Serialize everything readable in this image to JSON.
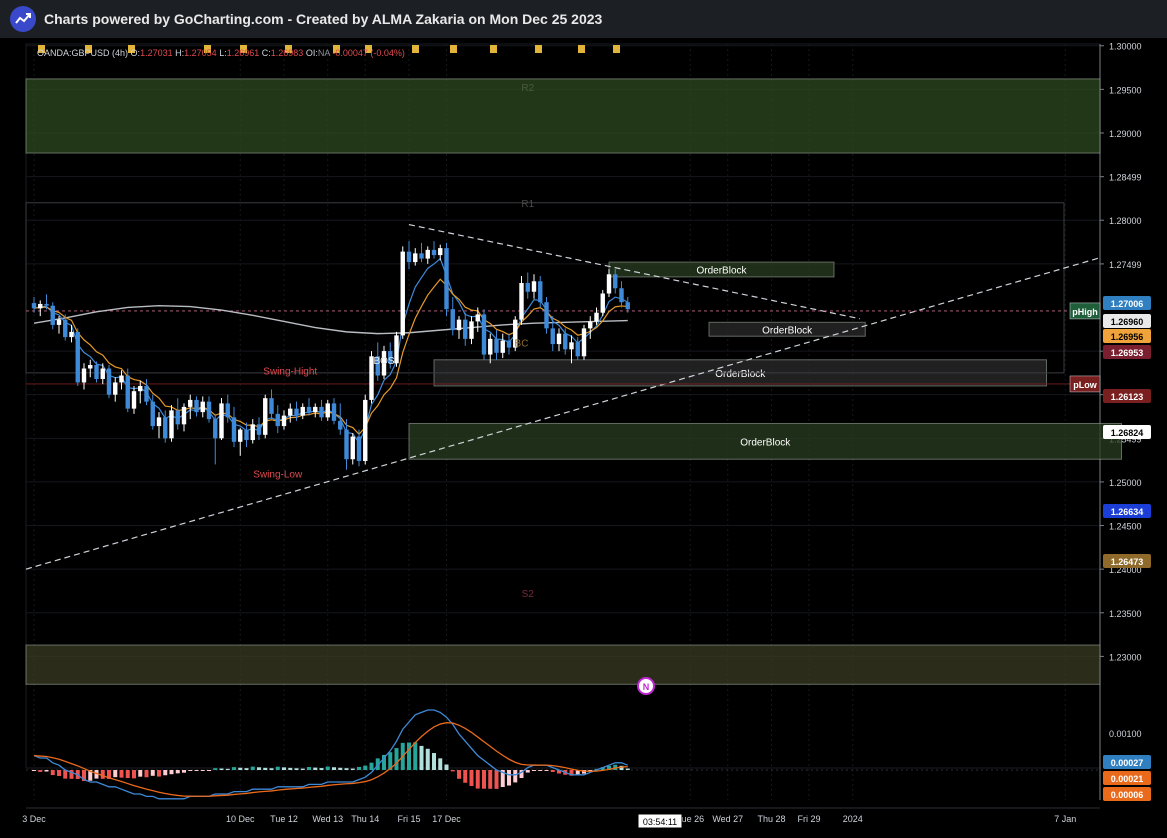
{
  "header": {
    "title": "Charts powered by GoCharting.com - Created by ALMA Zakaria on Mon Dec 25 2023",
    "logo_icon": "trend-line-icon"
  },
  "legend": {
    "symbol": "OANDA:GBPUSD (4h)",
    "open_label": "O:",
    "open_value": "1.27031",
    "high_label": "H:",
    "high_value": "1.27054",
    "low_label": "L:",
    "low_value": "1.26961",
    "close_label": "C:",
    "close_value": "1.26983",
    "oi_label": "OI:",
    "oi_value": "NA",
    "change_value": "-0.00047",
    "change_pct": "(-0.04%)"
  },
  "chart_data": {
    "type": "candlestick",
    "price_axis_labels": [
      "1.30000",
      "1.29500",
      "1.29000",
      "1.28499",
      "1.28000",
      "1.27499",
      "1.26499",
      "1.26000",
      "1.25499",
      "1.25000",
      "1.24500",
      "1.24000",
      "1.23500",
      "1.23000"
    ],
    "osc_axis_labels": [
      "0.00100"
    ],
    "time_axis_labels": [
      "3 Dec",
      "10 Dec",
      "Tue 12",
      "Wed 13",
      "Thu 14",
      "Fri 15",
      "17 Dec",
      "Tue 26",
      "Wed 27",
      "Thu 28",
      "Fri 29",
      "2024",
      "7 Jan"
    ],
    "countdown": "03:54:11",
    "price_badges": [
      {
        "value": "1.27006",
        "color": "#2f7fc1"
      },
      {
        "value": "1.26960",
        "color": "#e9e9e9"
      },
      {
        "value": "1.26956",
        "color": "#f0a33a"
      },
      {
        "value": "1.26953",
        "color": "#7a1f30"
      },
      {
        "value": "1.26123",
        "color": "#7a1f1f"
      },
      {
        "value": "1.26824",
        "color": "#ffffff"
      },
      {
        "value": "1.26634",
        "color": "#1b3fd6"
      },
      {
        "value": "1.26473",
        "color": "#8f6a2a"
      }
    ],
    "osc_badges": [
      {
        "value": "0.00027",
        "color": "#2f7fc1"
      },
      {
        "value": "0.00021",
        "color": "#ea6a1c"
      },
      {
        "value": "0.00006",
        "color": "#ea6a1c"
      }
    ],
    "level_tags": [
      {
        "text": "pHigh",
        "price": 1.2696,
        "color": "#1f5f3a"
      },
      {
        "text": "pLow",
        "price": 1.26123,
        "color": "#7a1f1f"
      }
    ],
    "zones": [
      {
        "label": "",
        "p_top": 1.2962,
        "p_bot": 1.2877,
        "i0": -1,
        "i1": 200,
        "fill": "#2e4a1f"
      },
      {
        "label": "",
        "p_top": 1.2313,
        "p_bot": 1.2268,
        "i0": -1,
        "i1": 200,
        "fill": "#3a3c23"
      },
      {
        "label": "OrderBlock",
        "p_top": 1.2752,
        "p_bot": 1.2735,
        "i0": 92,
        "i1": 128,
        "fill": "#2a3d20"
      },
      {
        "label": "OrderBlock",
        "p_top": 1.2683,
        "p_bot": 1.2667,
        "i0": 108,
        "i1": 133,
        "fill": "#2b2b2b"
      },
      {
        "label": "OrderBlock",
        "p_top": 1.264,
        "p_bot": 1.261,
        "i0": 64,
        "i1": 162,
        "fill": "#2b2b2b"
      },
      {
        "label": "OrderBlock",
        "p_top": 1.2567,
        "p_bot": 1.2526,
        "i0": 60,
        "i1": 174,
        "fill": "#2a3d20"
      }
    ],
    "annotations": [
      {
        "text": "Swing-Hight",
        "price": 1.2623,
        "i": 41,
        "color": "#e0494f"
      },
      {
        "text": "BOS",
        "price": 1.2635,
        "i": 56,
        "color": "#e9e9e9"
      },
      {
        "text": "Swing-Low",
        "price": 1.2505,
        "i": 39,
        "color": "#e0494f"
      },
      {
        "text": "R2",
        "price": 1.2948,
        "i": 79,
        "color": "#4a5a3a"
      },
      {
        "text": "R1",
        "price": 1.2815,
        "i": 79,
        "color": "#4a4a4a"
      },
      {
        "text": "BC",
        "price": 1.2655,
        "i": 78,
        "color": "#8f6a2a"
      },
      {
        "text": "S2",
        "price": 1.2368,
        "i": 79,
        "color": "#7a2a3a"
      }
    ],
    "news_marker": "N",
    "candles": [
      [
        1.2705,
        1.2712,
        1.2694,
        1.2699
      ],
      [
        1.2699,
        1.2708,
        1.269,
        1.2704
      ],
      [
        1.2704,
        1.2715,
        1.2698,
        1.2702
      ],
      [
        1.2702,
        1.2706,
        1.2675,
        1.268
      ],
      [
        1.268,
        1.269,
        1.267,
        1.2686
      ],
      [
        1.2686,
        1.2692,
        1.2662,
        1.2666
      ],
      [
        1.2666,
        1.268,
        1.266,
        1.2672
      ],
      [
        1.2672,
        1.2676,
        1.261,
        1.2614
      ],
      [
        1.2614,
        1.2636,
        1.2606,
        1.263
      ],
      [
        1.263,
        1.264,
        1.262,
        1.2634
      ],
      [
        1.2634,
        1.2638,
        1.2614,
        1.2618
      ],
      [
        1.2618,
        1.2636,
        1.2612,
        1.263
      ],
      [
        1.263,
        1.2634,
        1.2596,
        1.26
      ],
      [
        1.26,
        1.262,
        1.2592,
        1.2614
      ],
      [
        1.2614,
        1.2628,
        1.2606,
        1.2622
      ],
      [
        1.2622,
        1.263,
        1.258,
        1.2584
      ],
      [
        1.2584,
        1.261,
        1.2578,
        1.2604
      ],
      [
        1.2604,
        1.2616,
        1.259,
        1.261
      ],
      [
        1.261,
        1.2618,
        1.2588,
        1.2592
      ],
      [
        1.2592,
        1.26,
        1.256,
        1.2564
      ],
      [
        1.2564,
        1.258,
        1.255,
        1.2574
      ],
      [
        1.2574,
        1.2582,
        1.2545,
        1.255
      ],
      [
        1.255,
        1.2588,
        1.2546,
        1.2582
      ],
      [
        1.2582,
        1.2596,
        1.256,
        1.2566
      ],
      [
        1.2566,
        1.259,
        1.2558,
        1.2586
      ],
      [
        1.2586,
        1.26,
        1.2572,
        1.2594
      ],
      [
        1.2594,
        1.2598,
        1.2575,
        1.258
      ],
      [
        1.258,
        1.2598,
        1.2574,
        1.2592
      ],
      [
        1.2592,
        1.2598,
        1.2568,
        1.2572
      ],
      [
        1.2572,
        1.2578,
        1.252,
        1.255
      ],
      [
        1.255,
        1.2596,
        1.2548,
        1.259
      ],
      [
        1.259,
        1.26,
        1.2568,
        1.2574
      ],
      [
        1.2574,
        1.2586,
        1.254,
        1.2546
      ],
      [
        1.2546,
        1.2562,
        1.253,
        1.256
      ],
      [
        1.256,
        1.2568,
        1.254,
        1.2548
      ],
      [
        1.2548,
        1.2572,
        1.2544,
        1.2566
      ],
      [
        1.2566,
        1.2574,
        1.2548,
        1.2554
      ],
      [
        1.2554,
        1.26,
        1.255,
        1.2596
      ],
      [
        1.2596,
        1.2606,
        1.2572,
        1.2578
      ],
      [
        1.2578,
        1.2588,
        1.2556,
        1.2564
      ],
      [
        1.2564,
        1.2582,
        1.256,
        1.2576
      ],
      [
        1.2576,
        1.259,
        1.2568,
        1.2584
      ],
      [
        1.2584,
        1.2592,
        1.257,
        1.2576
      ],
      [
        1.2576,
        1.259,
        1.2572,
        1.2586
      ],
      [
        1.2586,
        1.2596,
        1.2576,
        1.258
      ],
      [
        1.258,
        1.259,
        1.2574,
        1.2586
      ],
      [
        1.2586,
        1.2594,
        1.257,
        1.2574
      ],
      [
        1.2574,
        1.2594,
        1.257,
        1.259
      ],
      [
        1.259,
        1.2596,
        1.2566,
        1.257
      ],
      [
        1.257,
        1.259,
        1.2554,
        1.256
      ],
      [
        1.256,
        1.2572,
        1.2514,
        1.2526
      ],
      [
        1.2526,
        1.2556,
        1.252,
        1.2552
      ],
      [
        1.2552,
        1.256,
        1.2518,
        1.2524
      ],
      [
        1.2524,
        1.26,
        1.252,
        1.2594
      ],
      [
        1.2594,
        1.265,
        1.259,
        1.2644
      ],
      [
        1.2644,
        1.266,
        1.2616,
        1.2622
      ],
      [
        1.2622,
        1.2656,
        1.2618,
        1.265
      ],
      [
        1.265,
        1.266,
        1.263,
        1.2636
      ],
      [
        1.2636,
        1.2672,
        1.2632,
        1.2668
      ],
      [
        1.2668,
        1.277,
        1.2664,
        1.2764
      ],
      [
        1.2764,
        1.2776,
        1.2744,
        1.2752
      ],
      [
        1.2752,
        1.2768,
        1.2748,
        1.2762
      ],
      [
        1.2762,
        1.2774,
        1.2752,
        1.2756
      ],
      [
        1.2756,
        1.277,
        1.275,
        1.2766
      ],
      [
        1.2766,
        1.2776,
        1.2756,
        1.276
      ],
      [
        1.276,
        1.2772,
        1.2754,
        1.2768
      ],
      [
        1.2768,
        1.2774,
        1.269,
        1.2698
      ],
      [
        1.2698,
        1.2712,
        1.2668,
        1.2674
      ],
      [
        1.2674,
        1.269,
        1.2664,
        1.2686
      ],
      [
        1.2686,
        1.2694,
        1.2656,
        1.2664
      ],
      [
        1.2664,
        1.269,
        1.2658,
        1.2684
      ],
      [
        1.2684,
        1.27,
        1.2672,
        1.2692
      ],
      [
        1.2692,
        1.2698,
        1.264,
        1.2646
      ],
      [
        1.2646,
        1.267,
        1.2636,
        1.2664
      ],
      [
        1.2664,
        1.2674,
        1.264,
        1.2648
      ],
      [
        1.2648,
        1.267,
        1.2642,
        1.2662
      ],
      [
        1.2662,
        1.267,
        1.2646,
        1.2654
      ],
      [
        1.2654,
        1.269,
        1.265,
        1.2686
      ],
      [
        1.2686,
        1.2736,
        1.268,
        1.2728
      ],
      [
        1.2728,
        1.274,
        1.271,
        1.2718
      ],
      [
        1.2718,
        1.2738,
        1.271,
        1.273
      ],
      [
        1.273,
        1.2736,
        1.27,
        1.2706
      ],
      [
        1.2706,
        1.2712,
        1.267,
        1.2676
      ],
      [
        1.2676,
        1.269,
        1.265,
        1.2658
      ],
      [
        1.2658,
        1.2676,
        1.265,
        1.267
      ],
      [
        1.267,
        1.2676,
        1.2646,
        1.2652
      ],
      [
        1.2652,
        1.2668,
        1.2636,
        1.266
      ],
      [
        1.266,
        1.2666,
        1.264,
        1.2644
      ],
      [
        1.2644,
        1.268,
        1.264,
        1.2676
      ],
      [
        1.2676,
        1.269,
        1.2664,
        1.2684
      ],
      [
        1.2684,
        1.27,
        1.268,
        1.2694
      ],
      [
        1.2694,
        1.272,
        1.269,
        1.2716
      ],
      [
        1.2716,
        1.2744,
        1.2712,
        1.2738
      ],
      [
        1.2738,
        1.2744,
        1.2716,
        1.2722
      ],
      [
        1.2722,
        1.273,
        1.27,
        1.2706
      ],
      [
        1.2706,
        1.2712,
        1.2694,
        1.2698
      ]
    ],
    "sma_long": [
      [
        0,
        1.2682
      ],
      [
        5,
        1.2688
      ],
      [
        10,
        1.2695
      ],
      [
        15,
        1.27
      ],
      [
        20,
        1.2702
      ],
      [
        25,
        1.2701
      ],
      [
        30,
        1.2697
      ],
      [
        35,
        1.2691
      ],
      [
        40,
        1.2684
      ],
      [
        45,
        1.2677
      ],
      [
        50,
        1.2672
      ],
      [
        55,
        1.267
      ],
      [
        60,
        1.2671
      ],
      [
        65,
        1.2674
      ],
      [
        70,
        1.2677
      ],
      [
        75,
        1.268
      ],
      [
        80,
        1.2682
      ],
      [
        85,
        1.2683
      ],
      [
        90,
        1.2684
      ],
      [
        95,
        1.2685
      ]
    ],
    "macd": [
      6,
      5,
      5,
      3,
      2,
      0,
      -1,
      -2,
      -4,
      -5,
      -5,
      -6,
      -7,
      -7,
      -8,
      -9,
      -10,
      -10,
      -11,
      -11,
      -12,
      -12,
      -12,
      -12,
      -12,
      -11,
      -11,
      -11,
      -11,
      -10,
      -10,
      -10,
      -9,
      -9,
      -9,
      -8,
      -8,
      -8,
      -8,
      -7,
      -7,
      -7,
      -7,
      -7,
      -6,
      -6,
      -6,
      -5,
      -5,
      -5,
      -5,
      -5,
      -4,
      -3,
      -1,
      2,
      5,
      8,
      12,
      17,
      20,
      23,
      24,
      25,
      25,
      24,
      22,
      19,
      15,
      12,
      9,
      6,
      4,
      2,
      0,
      -1,
      -2,
      -2,
      -1,
      1,
      2,
      2,
      2,
      1,
      0,
      -1,
      -2,
      -2,
      -2,
      -1,
      0,
      1,
      2,
      3,
      3,
      2
    ]
  }
}
